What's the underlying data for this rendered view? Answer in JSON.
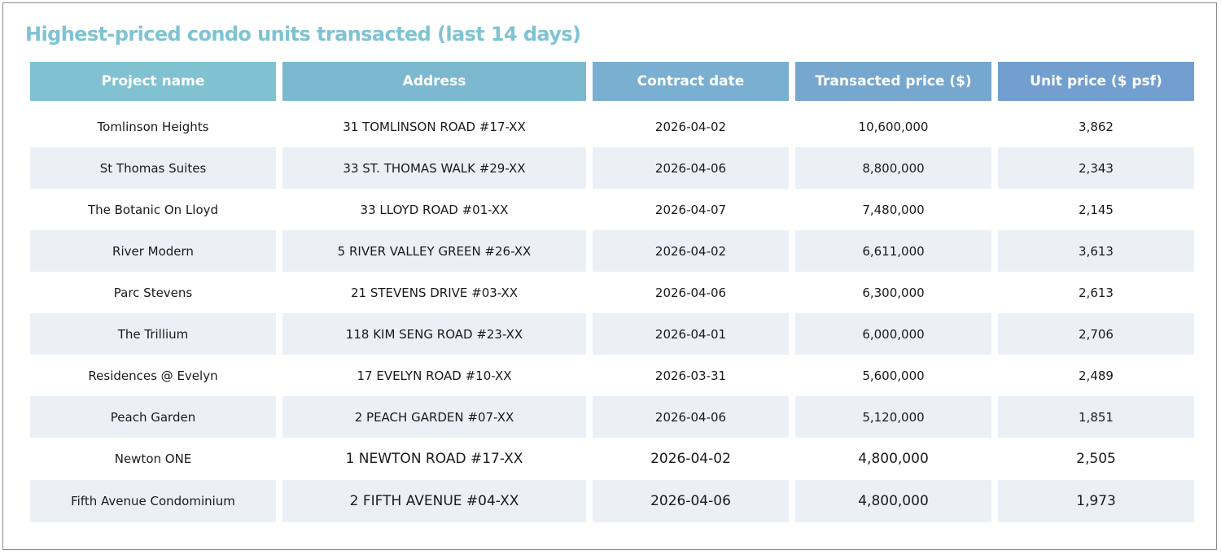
{
  "title": "Highest-priced condo units transacted (last 14 days)",
  "table": {
    "headers": [
      "Project name",
      "Address",
      "Contract date",
      "Transacted price ($)",
      "Unit price ($ psf)"
    ],
    "rows": [
      [
        "Tomlinson Heights",
        "31 TOMLINSON ROAD  #17-XX",
        "2026-04-02",
        "10,600,000",
        "3,862"
      ],
      [
        "St Thomas Suites",
        "33 ST. THOMAS WALK  #29-XX",
        "2026-04-06",
        "8,800,000",
        "2,343"
      ],
      [
        "The Botanic On Lloyd",
        "33 LLOYD ROAD  #01-XX",
        "2026-04-07",
        "7,480,000",
        "2,145"
      ],
      [
        "River Modern",
        "5 RIVER VALLEY GREEN  #26-XX",
        "2026-04-02",
        "6,611,000",
        "3,613"
      ],
      [
        "Parc Stevens",
        "21 STEVENS DRIVE  #03-XX",
        "2026-04-06",
        "6,300,000",
        "2,613"
      ],
      [
        "The Trillium",
        "118 KIM SENG ROAD  #23-XX",
        "2026-04-01",
        "6,000,000",
        "2,706"
      ],
      [
        "Residences @ Evelyn",
        "17 EVELYN ROAD  #10-XX",
        "2026-03-31",
        "5,600,000",
        "2,489"
      ],
      [
        "Peach Garden",
        "2 PEACH GARDEN  #07-XX",
        "2026-04-06",
        "5,120,000",
        "1,851"
      ],
      [
        "Newton ONE",
        "1 NEWTON ROAD  #17-XX",
        "2026-04-02",
        "4,800,000",
        "2,505"
      ],
      [
        "Fifth Avenue Condominium",
        "2 FIFTH AVENUE  #04-XX",
        "2026-04-06",
        "4,800,000",
        "1,973"
      ]
    ]
  },
  "colors": {
    "title": "#7fc3d3",
    "header_gradient_start": "#80c2d1",
    "header_gradient_end": "#729fcf",
    "row_stripe": "#ebf0f7",
    "frame_border": "#8a8a8a"
  }
}
